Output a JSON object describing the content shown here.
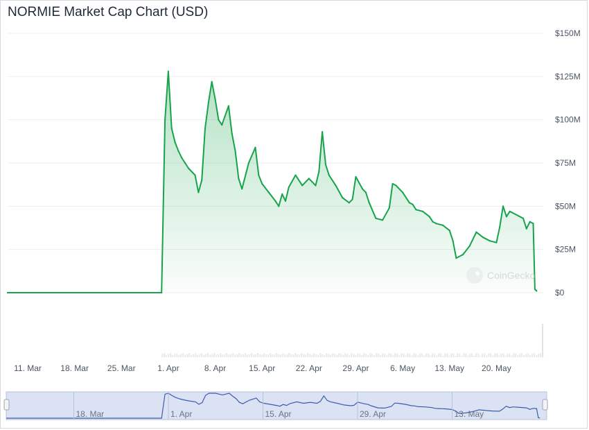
{
  "title": "NORMIE Market Cap Chart (USD)",
  "watermark": {
    "text": "CoinGecko",
    "icon": "coingecko-logo-icon"
  },
  "colors": {
    "line": "#16a34a",
    "area_top": "#16a34a",
    "grid": "#eceef1",
    "axis_text": "#4b5563",
    "navigator_fill": "#dbe2f3",
    "navigator_line": "#3b5cad",
    "navigator_border": "#b7c1d9"
  },
  "chart_data": {
    "type": "area",
    "currency": "USD",
    "x_axis_type": "date",
    "xlim": [
      "2024-03-08",
      "2024-05-27"
    ],
    "ylim": [
      0,
      150000000
    ],
    "y_ticks": [
      {
        "value": 0,
        "label": "$0"
      },
      {
        "value": 25000000,
        "label": "$25M"
      },
      {
        "value": 50000000,
        "label": "$50M"
      },
      {
        "value": 75000000,
        "label": "$75M"
      },
      {
        "value": 100000000,
        "label": "$100M"
      },
      {
        "value": 125000000,
        "label": "$125M"
      },
      {
        "value": 150000000,
        "label": "$150M"
      }
    ],
    "x_ticks": [
      {
        "date": "2024-03-11",
        "label": "11. Mar"
      },
      {
        "date": "2024-03-18",
        "label": "18. Mar"
      },
      {
        "date": "2024-03-25",
        "label": "25. Mar"
      },
      {
        "date": "2024-04-01",
        "label": "1. Apr"
      },
      {
        "date": "2024-04-08",
        "label": "8. Apr"
      },
      {
        "date": "2024-04-15",
        "label": "15. Apr"
      },
      {
        "date": "2024-04-22",
        "label": "22. Apr"
      },
      {
        "date": "2024-04-29",
        "label": "29. Apr"
      },
      {
        "date": "2024-05-06",
        "label": "6. May"
      },
      {
        "date": "2024-05-13",
        "label": "13. May"
      },
      {
        "date": "2024-05-20",
        "label": "20. May"
      }
    ],
    "grid": true,
    "legend": "none",
    "series": [
      {
        "points": [
          [
            "2024-03-08",
            0
          ],
          [
            "2024-03-31",
            0
          ],
          [
            "2024-03-31 12:00",
            100000000
          ],
          [
            "2024-04-01",
            128000000
          ],
          [
            "2024-04-01 12:00",
            95000000
          ],
          [
            "2024-04-02",
            87000000
          ],
          [
            "2024-04-02 12:00",
            82000000
          ],
          [
            "2024-04-03",
            78000000
          ],
          [
            "2024-04-03 12:00",
            75000000
          ],
          [
            "2024-04-04",
            72000000
          ],
          [
            "2024-04-05",
            68000000
          ],
          [
            "2024-04-05 12:00",
            58000000
          ],
          [
            "2024-04-06",
            65000000
          ],
          [
            "2024-04-06 12:00",
            95000000
          ],
          [
            "2024-04-07",
            110000000
          ],
          [
            "2024-04-07 12:00",
            122000000
          ],
          [
            "2024-04-08",
            112000000
          ],
          [
            "2024-04-08 12:00",
            100000000
          ],
          [
            "2024-04-09",
            97000000
          ],
          [
            "2024-04-10",
            108000000
          ],
          [
            "2024-04-10 12:00",
            92000000
          ],
          [
            "2024-04-11",
            82000000
          ],
          [
            "2024-04-11 12:00",
            66000000
          ],
          [
            "2024-04-12",
            60000000
          ],
          [
            "2024-04-13",
            75000000
          ],
          [
            "2024-04-14",
            84000000
          ],
          [
            "2024-04-14 12:00",
            68000000
          ],
          [
            "2024-04-15",
            63000000
          ],
          [
            "2024-04-16",
            58000000
          ],
          [
            "2024-04-17",
            53000000
          ],
          [
            "2024-04-17 12:00",
            50000000
          ],
          [
            "2024-04-18",
            57000000
          ],
          [
            "2024-04-18 12:00",
            53000000
          ],
          [
            "2024-04-19",
            61000000
          ],
          [
            "2024-04-20",
            68000000
          ],
          [
            "2024-04-21",
            62000000
          ],
          [
            "2024-04-22",
            66000000
          ],
          [
            "2024-04-23",
            62000000
          ],
          [
            "2024-04-23 12:00",
            70000000
          ],
          [
            "2024-04-24",
            93000000
          ],
          [
            "2024-04-24 12:00",
            74000000
          ],
          [
            "2024-04-25",
            68000000
          ],
          [
            "2024-04-26",
            62000000
          ],
          [
            "2024-04-27",
            55000000
          ],
          [
            "2024-04-28",
            52000000
          ],
          [
            "2024-04-28 12:00",
            54000000
          ],
          [
            "2024-04-29",
            67000000
          ],
          [
            "2024-04-30",
            60000000
          ],
          [
            "2024-04-30 12:00",
            58000000
          ],
          [
            "2024-05-01",
            52000000
          ],
          [
            "2024-05-02",
            43000000
          ],
          [
            "2024-05-03",
            42000000
          ],
          [
            "2024-05-04",
            49000000
          ],
          [
            "2024-05-04 12:00",
            63000000
          ],
          [
            "2024-05-05",
            62000000
          ],
          [
            "2024-05-06",
            58000000
          ],
          [
            "2024-05-07",
            52000000
          ],
          [
            "2024-05-07 12:00",
            51000000
          ],
          [
            "2024-05-08",
            48000000
          ],
          [
            "2024-05-09",
            47000000
          ],
          [
            "2024-05-10",
            44000000
          ],
          [
            "2024-05-10 12:00",
            41000000
          ],
          [
            "2024-05-11",
            40000000
          ],
          [
            "2024-05-12",
            39000000
          ],
          [
            "2024-05-13",
            36000000
          ],
          [
            "2024-05-13 12:00",
            30000000
          ],
          [
            "2024-05-14",
            20000000
          ],
          [
            "2024-05-15",
            22000000
          ],
          [
            "2024-05-16",
            27000000
          ],
          [
            "2024-05-17",
            35000000
          ],
          [
            "2024-05-18",
            32000000
          ],
          [
            "2024-05-19",
            30000000
          ],
          [
            "2024-05-20",
            29000000
          ],
          [
            "2024-05-20 12:00",
            38000000
          ],
          [
            "2024-05-21",
            50000000
          ],
          [
            "2024-05-21 12:00",
            44000000
          ],
          [
            "2024-05-22",
            47000000
          ],
          [
            "2024-05-23",
            45000000
          ],
          [
            "2024-05-24",
            43000000
          ],
          [
            "2024-05-24 12:00",
            37000000
          ],
          [
            "2024-05-25",
            41000000
          ],
          [
            "2024-05-25 12:00",
            40000000
          ],
          [
            "2024-05-25 18:00",
            2000000
          ],
          [
            "2024-05-26",
            1000000
          ]
        ]
      }
    ]
  },
  "navigator": {
    "labels": [
      {
        "date": "2024-03-18",
        "label": "18. Mar"
      },
      {
        "date": "2024-04-01",
        "label": "1. Apr"
      },
      {
        "date": "2024-04-15",
        "label": "15. Apr"
      },
      {
        "date": "2024-04-29",
        "label": "29. Apr"
      },
      {
        "date": "2024-05-13",
        "label": "13. May"
      }
    ]
  }
}
